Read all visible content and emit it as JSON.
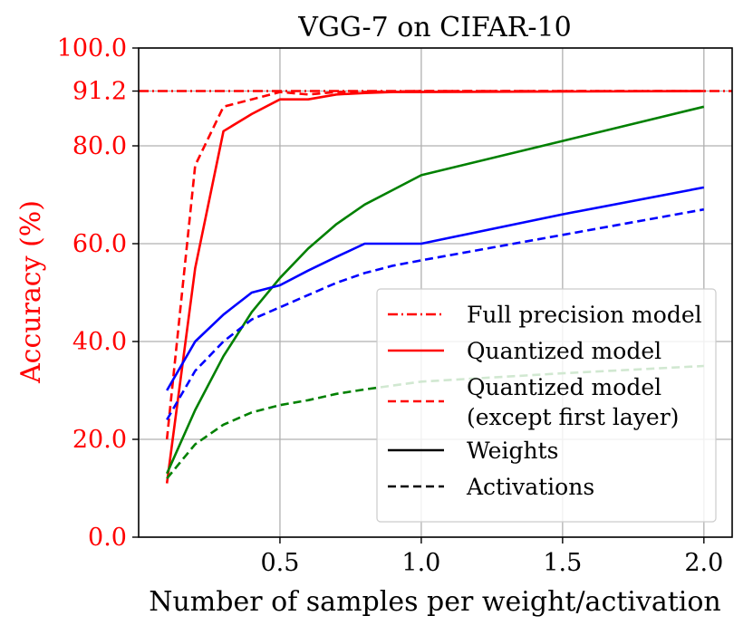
{
  "chart_data": {
    "type": "line",
    "title": "VGG-7 on CIFAR-10",
    "xlabel": "Number of samples per weight/activation",
    "ylabel": "Accuracy (%)",
    "xlim": [
      0.0,
      2.1
    ],
    "ylim": [
      0,
      100
    ],
    "xticks": [
      0.5,
      1.0,
      1.5,
      2.0
    ],
    "xtick_labels": [
      "0.5",
      "1.0",
      "1.5",
      "2.0"
    ],
    "yticks": [
      0,
      20,
      40,
      60,
      80,
      91.2,
      100
    ],
    "ytick_labels": [
      "0.0",
      "20.0",
      "40.0",
      "60.0",
      "80.0",
      "91.2",
      "100.0"
    ],
    "grid": true,
    "colors": {
      "red": "#ff0000",
      "green": "#008000",
      "blue": "#0000ff",
      "black": "#000000",
      "grid": "#b0b0b0"
    },
    "series": [
      {
        "name": "Full precision model",
        "color": "red",
        "style": "dashdot",
        "x": [
          0.0,
          2.1
        ],
        "values": [
          91.2,
          91.2
        ]
      },
      {
        "name": "Quantized model (red, weights)",
        "color": "red",
        "style": "solid",
        "x": [
          0.1,
          0.2,
          0.3,
          0.4,
          0.5,
          0.6,
          0.7,
          0.8,
          0.9,
          1.0,
          2.0
        ],
        "values": [
          11,
          55,
          83,
          86.5,
          89.5,
          89.5,
          90.5,
          90.8,
          91.0,
          91.0,
          91.2
        ]
      },
      {
        "name": "Quantized model except first layer (red, activations)",
        "color": "red",
        "style": "dashed",
        "x": [
          0.1,
          0.2,
          0.3,
          0.4,
          0.5,
          0.6,
          0.7,
          0.8,
          1.0,
          2.0
        ],
        "values": [
          20,
          76,
          88,
          89.5,
          91.0,
          90.5,
          91.0,
          91.0,
          91.2,
          91.2
        ]
      },
      {
        "name": "Green weights",
        "color": "green",
        "style": "solid",
        "x": [
          0.1,
          0.2,
          0.3,
          0.4,
          0.5,
          0.6,
          0.7,
          0.8,
          0.9,
          1.0,
          1.5,
          2.0
        ],
        "values": [
          13,
          26,
          37,
          46,
          53,
          59,
          64,
          68,
          71,
          74,
          81,
          88
        ]
      },
      {
        "name": "Green activations",
        "color": "green",
        "style": "dashed",
        "x": [
          0.1,
          0.2,
          0.3,
          0.4,
          0.5,
          0.6,
          0.7,
          0.8,
          0.9,
          1.0,
          1.5,
          2.0
        ],
        "values": [
          12,
          19,
          23,
          25.5,
          27,
          28,
          29.3,
          30.2,
          31,
          31.8,
          33.5,
          35
        ]
      },
      {
        "name": "Blue weights",
        "color": "blue",
        "style": "solid",
        "x": [
          0.1,
          0.2,
          0.3,
          0.4,
          0.5,
          0.6,
          0.7,
          0.8,
          0.9,
          1.0,
          1.5,
          2.0
        ],
        "values": [
          30,
          40,
          45.5,
          50,
          51.5,
          54.5,
          57.3,
          60,
          60,
          60,
          66,
          71.5
        ]
      },
      {
        "name": "Blue activations",
        "color": "blue",
        "style": "dashed",
        "x": [
          0.1,
          0.2,
          0.3,
          0.4,
          0.5,
          0.6,
          0.7,
          0.8,
          0.9,
          1.0,
          1.5,
          2.0
        ],
        "values": [
          24,
          34,
          40,
          44.5,
          47,
          49.5,
          52,
          54,
          55.5,
          56.6,
          61.8,
          67
        ]
      }
    ],
    "legend": {
      "placement": "lower-right",
      "entries": [
        {
          "label_lines": [
            "Full precision model"
          ],
          "color": "red",
          "style": "dashdot"
        },
        {
          "label_lines": [
            "Quantized model"
          ],
          "color": "red",
          "style": "solid"
        },
        {
          "label_lines": [
            "Quantized model",
            "(except first layer)"
          ],
          "color": "red",
          "style": "dashed"
        },
        {
          "label_lines": [
            "Weights"
          ],
          "color": "black",
          "style": "solid"
        },
        {
          "label_lines": [
            "Activations"
          ],
          "color": "black",
          "style": "dashed"
        }
      ]
    }
  }
}
